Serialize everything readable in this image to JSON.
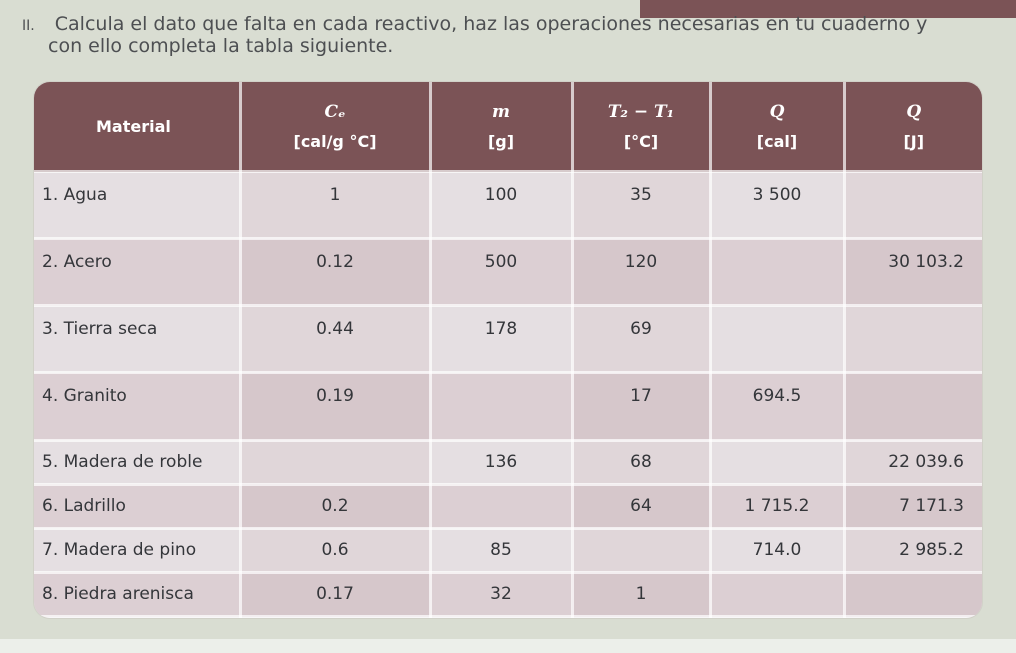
{
  "instruction": {
    "numeral": "II.",
    "line1": "Calcula el dato que falta en cada reactivo, haz las operaciones necesarias en tu cuaderno y",
    "line2": "con ello completa la tabla siguiente."
  },
  "table": {
    "headers": [
      {
        "label": "Material",
        "symbol": "",
        "unit": ""
      },
      {
        "label": "",
        "symbol": "Cₑ",
        "unit": "[cal/g °C]"
      },
      {
        "label": "",
        "symbol": "m",
        "unit": "[g]"
      },
      {
        "label": "",
        "symbol": "T₂ − T₁",
        "unit": "[°C]"
      },
      {
        "label": "",
        "symbol": "Q",
        "unit": "[cal]"
      },
      {
        "label": "",
        "symbol": "Q",
        "unit": "[J]"
      }
    ],
    "rows": [
      [
        "1. Agua",
        "1",
        "100",
        "35",
        "3 500",
        ""
      ],
      [
        "2. Acero",
        "0.12",
        "500",
        "120",
        "",
        "30 103.2"
      ],
      [
        "3. Tierra seca",
        "0.44",
        "178",
        "69",
        "",
        ""
      ],
      [
        "4. Granito",
        "0.19",
        "",
        "17",
        "694.5",
        ""
      ],
      [
        "5. Madera de roble",
        "",
        "136",
        "68",
        "",
        "22 039.6"
      ],
      [
        "6. Ladrillo",
        "0.2",
        "",
        "64",
        "1 715.2",
        "7 171.3"
      ],
      [
        "7. Madera de pino",
        "0.6",
        "85",
        "",
        "714.0",
        "2 985.2"
      ],
      [
        "8. Piedra arenisca",
        "0.17",
        "32",
        "1",
        "",
        ""
      ]
    ]
  },
  "colors": {
    "header_bg": "#7b5356",
    "row_light": "#e5dfe2",
    "row_dark": "#dccfd3",
    "page_bg": "#d9ddd2",
    "text": "#34363a"
  }
}
